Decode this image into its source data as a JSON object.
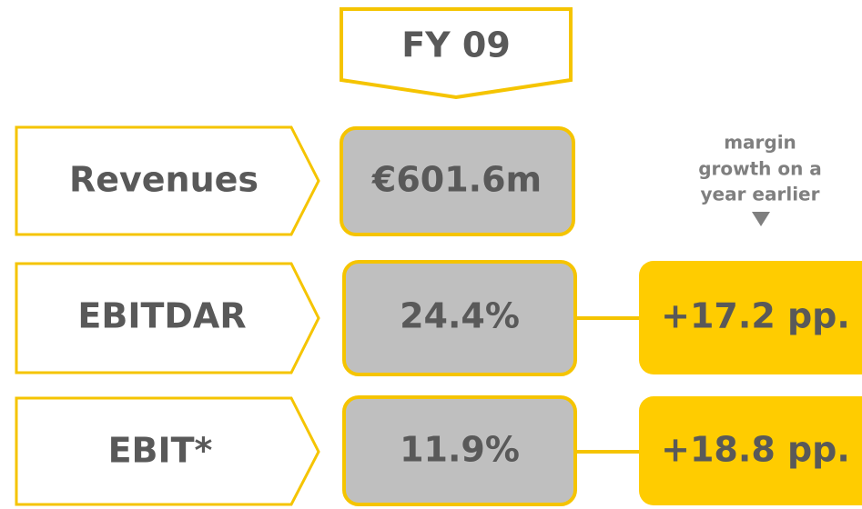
{
  "header": {
    "title": "FY 09"
  },
  "rows": [
    {
      "label": "Revenues",
      "value": "€601.6m"
    },
    {
      "label": "EBITDAR",
      "value": "24.4%",
      "growth": "+17.2 pp."
    },
    {
      "label": "EBIT*",
      "value": "11.9%",
      "growth": "+18.8 pp."
    }
  ],
  "note": [
    "margin",
    "growth on a",
    "year earlier"
  ]
}
